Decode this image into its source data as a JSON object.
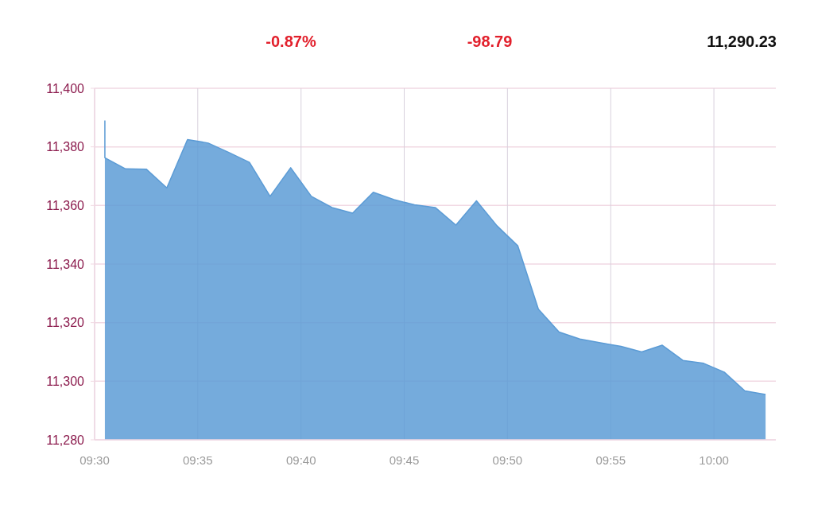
{
  "chart_data": {
    "type": "area",
    "annotations": [
      "-0.87%",
      "-98.79",
      "11,290.23"
    ],
    "x": [
      9.5083,
      9.5083,
      9.525,
      9.5417,
      9.5583,
      9.575,
      9.5917,
      9.6083,
      9.625,
      9.6417,
      9.6583,
      9.675,
      9.6917,
      9.7083,
      9.725,
      9.7417,
      9.7583,
      9.775,
      9.7917,
      9.8083,
      9.825,
      9.8417,
      9.8583,
      9.875,
      9.8917,
      9.9083,
      9.925,
      9.9417,
      9.9583,
      9.975,
      9.9917,
      10.0083,
      10.025,
      10.0417
    ],
    "values": [
      11389,
      11376.3,
      11372.5,
      11372.4,
      11366,
      11382.5,
      11381.3,
      11378.1,
      11374.7,
      11363.1,
      11372.9,
      11363.1,
      11359.3,
      11357.4,
      11364.5,
      11362,
      11360.2,
      11359.3,
      11353.3,
      11361.6,
      11353,
      11346.2,
      11324.6,
      11316.8,
      11314.4,
      11313.1,
      11311.9,
      11310,
      11312.3,
      11307.1,
      11306.1,
      11303.1,
      11296.7,
      11295.5
    ],
    "color": "#5b9bd5",
    "xlim": [
      9.5,
      10.05
    ],
    "xticks": [
      {
        "value": 9.5,
        "label": "09:30"
      },
      {
        "value": 9.5833,
        "label": "09:35"
      },
      {
        "value": 9.6667,
        "label": "09:40"
      },
      {
        "value": 9.75,
        "label": "09:45"
      },
      {
        "value": 9.8333,
        "label": "09:50"
      },
      {
        "value": 9.9167,
        "label": "09:55"
      },
      {
        "value": 10,
        "label": "10:00"
      }
    ],
    "ylim": [
      11280,
      11400
    ],
    "yticks": [
      {
        "value": 11280,
        "label": "11,280"
      },
      {
        "value": 11300,
        "label": "11,300"
      },
      {
        "value": 11320,
        "label": "11,320"
      },
      {
        "value": 11340,
        "label": "11,340"
      },
      {
        "value": 11360,
        "label": "11,360"
      },
      {
        "value": 11380,
        "label": "11,380"
      },
      {
        "value": 11400,
        "label": "11,400"
      }
    ],
    "grid": true
  }
}
